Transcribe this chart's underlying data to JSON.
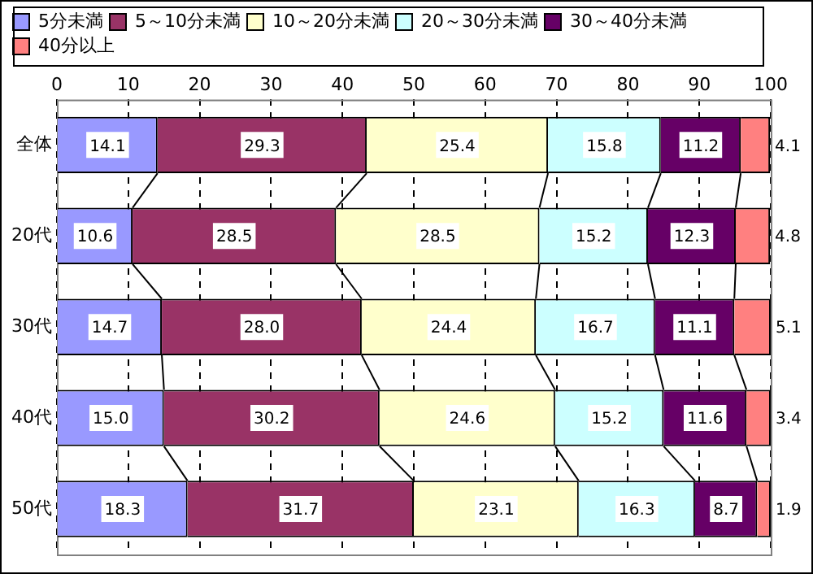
{
  "chart_data": {
    "type": "bar",
    "orientation": "horizontal",
    "stacked": true,
    "categories": [
      "全体",
      "20代",
      "30代",
      "40代",
      "50代"
    ],
    "series": [
      {
        "name": "5分未満",
        "color": "#9999ff",
        "values": [
          14.1,
          10.6,
          14.7,
          15.0,
          18.3
        ]
      },
      {
        "name": "5～10分未満",
        "color": "#993366",
        "values": [
          29.3,
          28.5,
          28.0,
          30.2,
          31.7
        ]
      },
      {
        "name": "10～20分未満",
        "color": "#ffffcc",
        "values": [
          25.4,
          28.5,
          24.4,
          24.6,
          23.1
        ]
      },
      {
        "name": "20～30分未満",
        "color": "#ccffff",
        "values": [
          15.8,
          15.2,
          16.7,
          15.2,
          16.3
        ]
      },
      {
        "name": "30～40分未満",
        "color": "#660066",
        "values": [
          11.2,
          12.3,
          11.1,
          11.6,
          8.7
        ]
      },
      {
        "name": "40分以上",
        "color": "#ff8080",
        "values": [
          4.1,
          4.8,
          5.1,
          3.4,
          1.9
        ]
      }
    ],
    "value_labels": [
      [
        "14.1",
        "10.6",
        "14.7",
        "15.0",
        "18.3"
      ],
      [
        "29.3",
        "28.5",
        "28.0",
        "30.2",
        "31.7"
      ],
      [
        "25.4",
        "28.5",
        "24.4",
        "24.6",
        "23.1"
      ],
      [
        "15.8",
        "15.2",
        "16.7",
        "15.2",
        "16.3"
      ],
      [
        "11.2",
        "12.3",
        "11.1",
        "11.6",
        "8.7"
      ],
      [
        "4.1",
        "4.8",
        "5.1",
        "3.4",
        "1.9"
      ]
    ],
    "xlim": [
      0,
      100
    ],
    "xticks": [
      0,
      10,
      20,
      30,
      40,
      50,
      60,
      70,
      80,
      90,
      100
    ],
    "grid": "x",
    "legend": "top"
  }
}
